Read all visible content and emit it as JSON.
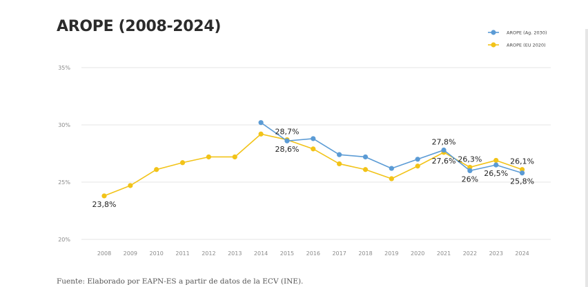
{
  "title": "AROPE (2008-2024)",
  "source": "Fuente: Elaborado por EAPN-ES a partir de datos de la ECV (INE).",
  "colors": {
    "ag2030": "#5b9bd5",
    "eu2020": "#f2c318",
    "grid": "#e5e5e5",
    "tick": "#8a8a8a"
  },
  "chart_data": {
    "type": "line",
    "title": "AROPE (2008-2024)",
    "categories": [
      "2008",
      "2009",
      "2010",
      "2011",
      "2012",
      "2013",
      "2014",
      "2015",
      "2016",
      "2017",
      "2018",
      "2019",
      "2020",
      "2021",
      "2022",
      "2023",
      "2024"
    ],
    "y_ticks": [
      "20%",
      "25%",
      "30%",
      "35%"
    ],
    "ylim": [
      20,
      35
    ],
    "grid": true,
    "legend_position": "top-right",
    "series": [
      {
        "name": "AROPE (Ag. 2030)",
        "color": "#5b9bd5",
        "values": [
          null,
          null,
          null,
          null,
          null,
          null,
          30.2,
          28.6,
          28.8,
          27.4,
          27.2,
          26.2,
          27.0,
          27.8,
          26.0,
          26.5,
          25.8
        ]
      },
      {
        "name": "AROPE (EU 2020)",
        "color": "#f2c318",
        "values": [
          23.8,
          24.7,
          26.1,
          26.7,
          27.2,
          27.2,
          29.2,
          28.7,
          27.9,
          26.6,
          26.1,
          25.3,
          26.4,
          27.6,
          26.3,
          26.9,
          26.1
        ]
      }
    ],
    "annotations": [
      {
        "label": "23,8%",
        "index": 0,
        "value": 23.8,
        "pos": "below"
      },
      {
        "label": "28,7%",
        "index": 7,
        "value": 28.7,
        "pos": "above"
      },
      {
        "label": "28,6%",
        "index": 7,
        "value": 28.6,
        "pos": "below"
      },
      {
        "label": "27,8%",
        "index": 13,
        "value": 27.8,
        "pos": "above"
      },
      {
        "label": "27,6%",
        "index": 13,
        "value": 27.6,
        "pos": "below"
      },
      {
        "label": "26,3%",
        "index": 14,
        "value": 26.3,
        "pos": "above"
      },
      {
        "label": "26%",
        "index": 14,
        "value": 26.0,
        "pos": "below"
      },
      {
        "label": "26,5%",
        "index": 15,
        "value": 26.5,
        "pos": "below"
      },
      {
        "label": "26,1%",
        "index": 16,
        "value": 26.1,
        "pos": "above"
      },
      {
        "label": "25,8%",
        "index": 16,
        "value": 25.8,
        "pos": "below"
      }
    ]
  }
}
